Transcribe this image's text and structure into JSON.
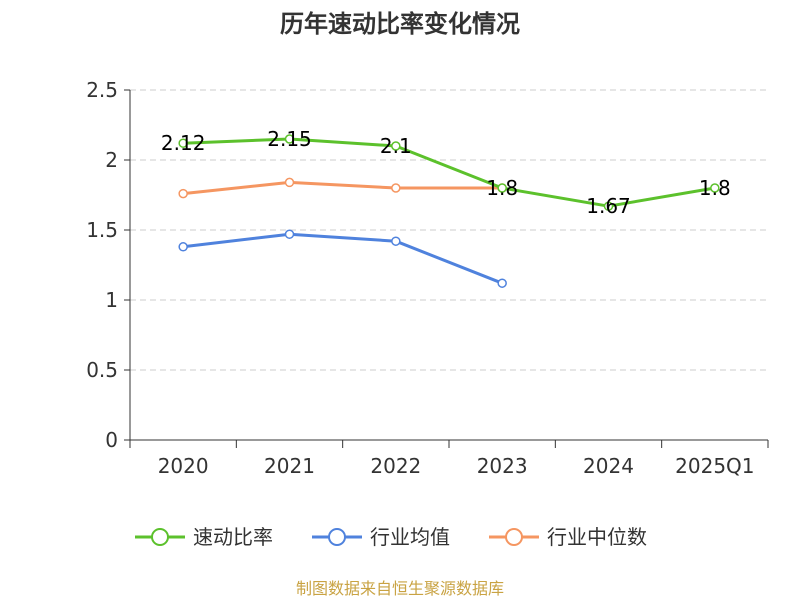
{
  "chart_data": {
    "type": "line",
    "title": "历年速动比率变化情况",
    "categories": [
      "2020",
      "2021",
      "2022",
      "2023",
      "2024",
      "2025Q1"
    ],
    "ylim": [
      0,
      2.5
    ],
    "yticks": [
      "0",
      "0.5",
      "1",
      "1.5",
      "2",
      "2.5"
    ],
    "grid": true,
    "legend_position": "bottom",
    "series": [
      {
        "name": "速动比率",
        "color": "#5cc12c",
        "values": [
          2.12,
          2.15,
          2.1,
          1.8,
          1.67,
          1.8
        ],
        "labels": [
          "2.12",
          "2.15",
          "2.1",
          "1.8",
          "1.67",
          "1.8"
        ]
      },
      {
        "name": "行业均值",
        "color": "#4f82dd",
        "values": [
          1.38,
          1.47,
          1.42,
          1.12,
          null,
          null
        ]
      },
      {
        "name": "行业中位数",
        "color": "#f59661",
        "values": [
          1.76,
          1.84,
          1.8,
          1.8,
          null,
          null
        ]
      }
    ],
    "source": "制图数据来自恒生聚源数据库"
  }
}
